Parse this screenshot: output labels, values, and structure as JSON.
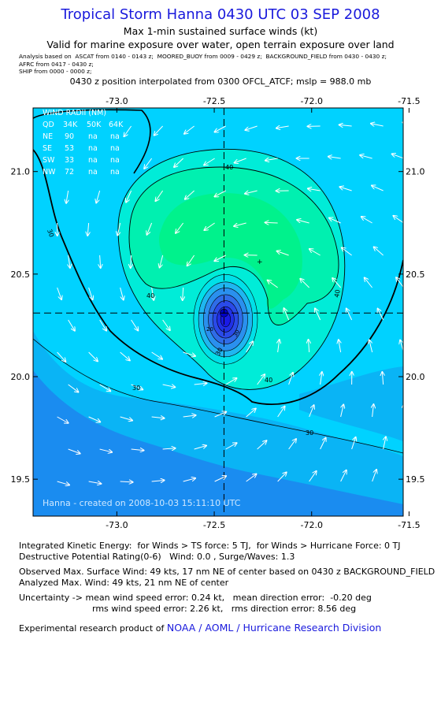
{
  "header": {
    "title": "Tropical Storm Hanna 0430 UTC 03 SEP 2008",
    "subtitle": "Max 1-min sustained surface winds (kt)",
    "validity": "Valid for marine exposure over water, open terrain exposure over land",
    "analysis_lines": [
      "Analysis based on  ASCAT from 0140 - 0143 z;  MOORED_BUOY from 0009 - 0429 z;  BACKGROUND_FIELD from 0430 - 0430 z;",
      "AFRC from 0417 - 0430 z;",
      "SHIP from 0000 - 0000 z;"
    ],
    "position_note": "0430 z position interpolated from 0300 OFCL_ATCF; mslp = 988.0 mb"
  },
  "map": {
    "lon_ticks": [
      "-73.0",
      "-72.5",
      "-72.0",
      "-71.5"
    ],
    "lat_ticks": [
      "21.0",
      "20.5",
      "20.0",
      "19.5"
    ],
    "lon_range": [
      -73.43,
      -71.53
    ],
    "lat_range": [
      19.32,
      21.31
    ],
    "center": {
      "lon": -72.45,
      "lat": 20.31
    },
    "contour_labels": [
      "40",
      "40",
      "40",
      "40",
      "30",
      "30",
      "30",
      "30",
      "20",
      "30"
    ],
    "wind_radii": {
      "title": "WIND RADII (NM)",
      "header": [
        "QD",
        "34K",
        "50K",
        "64K"
      ],
      "rows": [
        [
          "NE",
          "90",
          "na",
          "na"
        ],
        [
          "SE",
          "53",
          "na",
          "na"
        ],
        [
          "SW",
          "33",
          "na",
          "na"
        ],
        [
          "NW",
          "72",
          "na",
          "na"
        ]
      ]
    },
    "footer_stamp": "Hanna - created on 2008-10-03 15:11:10 UTC",
    "colors": {
      "land_low": "#1a8cf0",
      "land_mid": "#0ab4f5",
      "sea": "#00d2ff",
      "aqua": "#00ecd8",
      "green_light": "#00f0b0",
      "green": "#00f28c",
      "core": "#1a1ae6"
    }
  },
  "stats": {
    "ike": "Integrated Kinetic Energy:  for Winds > TS force: 5 TJ,  for Winds > Hurricane Force: 0 TJ",
    "dpr": "Destructive Potential Rating(0-6)   Wind: 0.0 , Surge/Waves: 1.3",
    "observed": "Observed Max. Surface Wind: 49 kts, 17 nm NE of center based on 0430 z BACKGROUND_FIELD",
    "analyzed": "Analyzed Max. Wind: 49 kts, 21 nm NE of center",
    "uncertainty1": "Uncertainty -> mean wind speed error: 0.24 kt,   mean direction error:  -0.20 deg",
    "uncertainty2": "rms wind speed error: 2.26 kt,   rms direction error: 8.56 deg",
    "credit_prefix": "Experimental research product of ",
    "credit_link": "NOAA / AOML / Hurricane Research Division"
  }
}
